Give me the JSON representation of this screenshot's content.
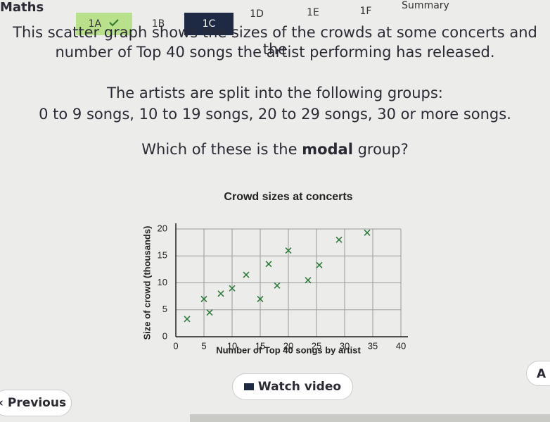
{
  "header": {
    "subject": "Maths"
  },
  "tabs": [
    "1A",
    "1B",
    "1C",
    "1D",
    "1E",
    "1F",
    "Summary"
  ],
  "question": {
    "lines": [
      "This scatter graph shows the sizes of the crowds at some concerts and the",
      "number of Top 40 songs the artist performing has released.",
      "The artists are split into the following groups:",
      "0 to 9 songs, 10 to 19 songs, 20 to 29 songs, 30 or more songs."
    ],
    "prompt": [
      "Which of these is the ",
      "modal",
      " group?"
    ]
  },
  "chart_data": {
    "type": "scatter",
    "title": "Crowd sizes at concerts",
    "x_label": "Number of Top 40 songs by artist",
    "y_label": "Size of crowd (thousands)",
    "x": [
      2,
      6,
      5,
      8,
      10,
      12.5,
      15,
      16.5,
      18,
      20,
      23.5,
      25.5,
      29,
      34
    ],
    "values": [
      3.3,
      4.5,
      7,
      8,
      9,
      11.5,
      7,
      13.5,
      9.5,
      16,
      10.5,
      13.3,
      18,
      19.3
    ],
    "color": "#2f7a3c",
    "xlim": [
      0,
      40
    ],
    "xticks": [
      0,
      5,
      10,
      15,
      20,
      25,
      30,
      35,
      40
    ],
    "ylim": [
      0,
      20
    ],
    "yticks": [
      0,
      5,
      10,
      15,
      20
    ],
    "grid": true
  },
  "buttons": {
    "previous": "Previous",
    "watch": "Watch video",
    "answer": "A"
  }
}
